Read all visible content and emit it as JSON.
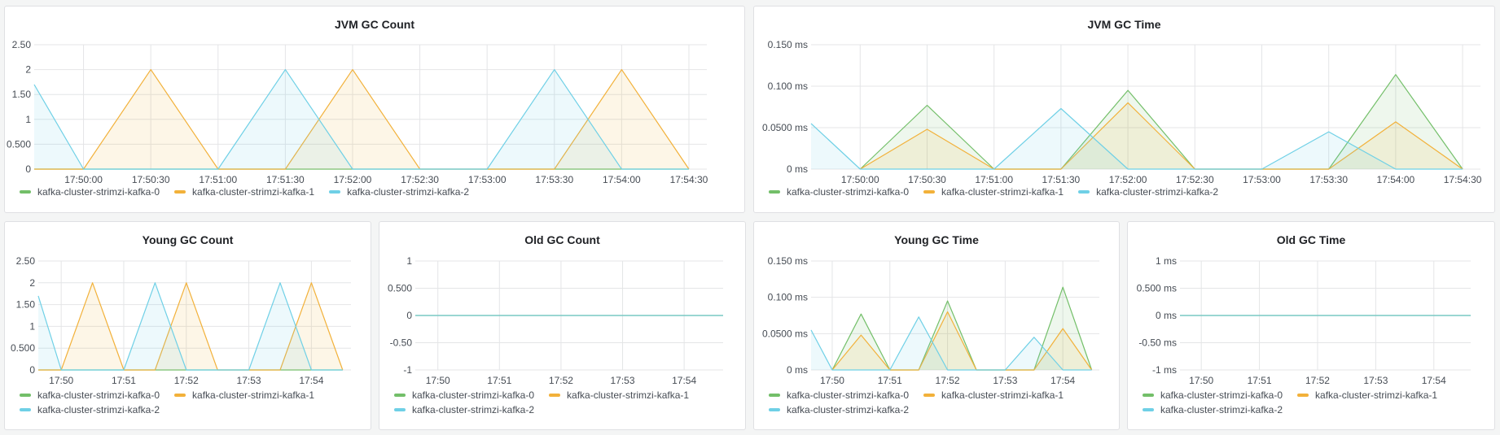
{
  "colors": {
    "series": [
      "#73bf69",
      "#f2b13a",
      "#6fd0e6"
    ],
    "grid": "#e4e5e7",
    "text": "#464c54"
  },
  "legend": [
    "kafka-cluster-strimzi-kafka-0",
    "kafka-cluster-strimzi-kafka-1",
    "kafka-cluster-strimzi-kafka-2"
  ],
  "chart_data": [
    {
      "id": "jvm-gc-count",
      "type": "area",
      "title": "JVM GC Count",
      "ylim": [
        0,
        2.5
      ],
      "yticks": [
        0,
        0.5,
        1,
        1.5,
        2,
        2.5
      ],
      "ytick_labels": [
        "0",
        "0.500",
        "1",
        "1.50",
        "2",
        "2.50"
      ],
      "xlim": [
        "17:49:38",
        "17:54:38"
      ],
      "xticks": [
        "17:50:00",
        "17:50:30",
        "17:51:00",
        "17:51:30",
        "17:52:00",
        "17:52:30",
        "17:53:00",
        "17:53:30",
        "17:54:00",
        "17:54:30"
      ],
      "xtick_labels": [
        "17:50:00",
        "17:50:30",
        "17:51:00",
        "17:51:30",
        "17:52:00",
        "17:52:30",
        "17:53:00",
        "17:53:30",
        "17:54:00",
        "17:54:30"
      ],
      "grid": true,
      "legend_position": "bottom",
      "series": [
        {
          "name": "kafka-cluster-strimzi-kafka-0",
          "x": [
            "17:49:38",
            "17:50:00",
            "17:51:30",
            "17:52:00",
            "17:52:30",
            "17:53:30",
            "17:54:00",
            "17:54:30"
          ],
          "y": [
            0,
            0,
            0,
            0,
            0,
            0,
            0,
            0
          ]
        },
        {
          "name": "kafka-cluster-strimzi-kafka-1",
          "x": [
            "17:49:38",
            "17:50:00",
            "17:50:30",
            "17:51:00",
            "17:51:30",
            "17:52:00",
            "17:52:30",
            "17:53:30",
            "17:54:00",
            "17:54:30"
          ],
          "y": [
            0,
            0,
            2,
            0,
            0,
            2,
            0,
            0,
            2,
            0
          ]
        },
        {
          "name": "kafka-cluster-strimzi-kafka-2",
          "x": [
            "17:49:38",
            "17:50:00",
            "17:51:00",
            "17:51:30",
            "17:52:00",
            "17:53:00",
            "17:53:30",
            "17:54:00",
            "17:54:30"
          ],
          "y": [
            1.7,
            0,
            0,
            2,
            0,
            0,
            2,
            0,
            0
          ]
        }
      ]
    },
    {
      "id": "jvm-gc-time",
      "type": "area",
      "title": "JVM GC Time",
      "ylim": [
        0,
        0.15
      ],
      "yticks": [
        0,
        0.05,
        0.1,
        0.15
      ],
      "ytick_labels": [
        "0 ms",
        "0.0500 ms",
        "0.100 ms",
        "0.150 ms"
      ],
      "xlim": [
        "17:49:38",
        "17:54:38"
      ],
      "xticks": [
        "17:50:00",
        "17:50:30",
        "17:51:00",
        "17:51:30",
        "17:52:00",
        "17:52:30",
        "17:53:00",
        "17:53:30",
        "17:54:00",
        "17:54:30"
      ],
      "xtick_labels": [
        "17:50:00",
        "17:50:30",
        "17:51:00",
        "17:51:30",
        "17:52:00",
        "17:52:30",
        "17:53:00",
        "17:53:30",
        "17:54:00",
        "17:54:30"
      ],
      "grid": true,
      "legend_position": "bottom",
      "series": [
        {
          "name": "kafka-cluster-strimzi-kafka-0",
          "x": [
            "17:50:00",
            "17:50:30",
            "17:51:00",
            "17:51:30",
            "17:52:00",
            "17:52:30",
            "17:53:30",
            "17:54:00",
            "17:54:30"
          ],
          "y": [
            0,
            0.077,
            0,
            0,
            0.095,
            0,
            0,
            0.114,
            0
          ]
        },
        {
          "name": "kafka-cluster-strimzi-kafka-1",
          "x": [
            "17:50:00",
            "17:50:30",
            "17:51:00",
            "17:51:30",
            "17:52:00",
            "17:52:30",
            "17:53:30",
            "17:54:00",
            "17:54:30"
          ],
          "y": [
            0,
            0.048,
            0,
            0,
            0.08,
            0,
            0,
            0.057,
            0
          ]
        },
        {
          "name": "kafka-cluster-strimzi-kafka-2",
          "x": [
            "17:49:38",
            "17:50:00",
            "17:51:00",
            "17:51:30",
            "17:52:00",
            "17:53:00",
            "17:53:30",
            "17:54:00",
            "17:54:30"
          ],
          "y": [
            0.055,
            0,
            0,
            0.073,
            0,
            0,
            0.045,
            0,
            0
          ]
        }
      ]
    },
    {
      "id": "young-gc-count",
      "type": "area",
      "title": "Young GC Count",
      "ylim": [
        0,
        2.5
      ],
      "yticks": [
        0,
        0.5,
        1,
        1.5,
        2,
        2.5
      ],
      "ytick_labels": [
        "0",
        "0.500",
        "1",
        "1.50",
        "2",
        "2.50"
      ],
      "xlim": [
        "17:49:38",
        "17:54:38"
      ],
      "xticks": [
        "17:50:00",
        "17:51:00",
        "17:52:00",
        "17:53:00",
        "17:54:00"
      ],
      "xtick_labels": [
        "17:50",
        "17:51",
        "17:52",
        "17:53",
        "17:54"
      ],
      "grid": true,
      "legend_position": "bottom",
      "series": [
        {
          "name": "kafka-cluster-strimzi-kafka-0",
          "x": [
            "17:49:38",
            "17:54:30"
          ],
          "y": [
            0,
            0
          ]
        },
        {
          "name": "kafka-cluster-strimzi-kafka-1",
          "x": [
            "17:49:38",
            "17:50:00",
            "17:50:30",
            "17:51:00",
            "17:51:30",
            "17:52:00",
            "17:52:30",
            "17:53:30",
            "17:54:00",
            "17:54:30"
          ],
          "y": [
            0,
            0,
            2,
            0,
            0,
            2,
            0,
            0,
            2,
            0
          ]
        },
        {
          "name": "kafka-cluster-strimzi-kafka-2",
          "x": [
            "17:49:38",
            "17:50:00",
            "17:51:00",
            "17:51:30",
            "17:52:00",
            "17:53:00",
            "17:53:30",
            "17:54:00",
            "17:54:30"
          ],
          "y": [
            1.7,
            0,
            0,
            2,
            0,
            0,
            2,
            0,
            0
          ]
        }
      ]
    },
    {
      "id": "old-gc-count",
      "type": "line",
      "title": "Old GC Count",
      "ylim": [
        -1,
        1
      ],
      "yticks": [
        -1,
        -0.5,
        0,
        0.5,
        1
      ],
      "ytick_labels": [
        "-1",
        "-0.50",
        "0",
        "0.500",
        "1"
      ],
      "xlim": [
        "17:49:38",
        "17:54:38"
      ],
      "xticks": [
        "17:50:00",
        "17:51:00",
        "17:52:00",
        "17:53:00",
        "17:54:00"
      ],
      "xtick_labels": [
        "17:50",
        "17:51",
        "17:52",
        "17:53",
        "17:54"
      ],
      "grid": true,
      "legend_position": "bottom",
      "series": [
        {
          "name": "kafka-cluster-strimzi-kafka-0",
          "x": [
            "17:49:38",
            "17:54:38"
          ],
          "y": [
            0,
            0
          ]
        },
        {
          "name": "kafka-cluster-strimzi-kafka-1",
          "x": [
            "17:49:38",
            "17:54:38"
          ],
          "y": [
            0,
            0
          ]
        },
        {
          "name": "kafka-cluster-strimzi-kafka-2",
          "x": [
            "17:49:38",
            "17:54:38"
          ],
          "y": [
            0,
            0
          ]
        }
      ]
    },
    {
      "id": "young-gc-time",
      "type": "area",
      "title": "Young GC Time",
      "ylim": [
        0,
        0.15
      ],
      "yticks": [
        0,
        0.05,
        0.1,
        0.15
      ],
      "ytick_labels": [
        "0 ms",
        "0.0500 ms",
        "0.100 ms",
        "0.150 ms"
      ],
      "xlim": [
        "17:49:38",
        "17:54:38"
      ],
      "xticks": [
        "17:50:00",
        "17:51:00",
        "17:52:00",
        "17:53:00",
        "17:54:00"
      ],
      "xtick_labels": [
        "17:50",
        "17:51",
        "17:52",
        "17:53",
        "17:54"
      ],
      "grid": true,
      "legend_position": "bottom",
      "series": [
        {
          "name": "kafka-cluster-strimzi-kafka-0",
          "x": [
            "17:50:00",
            "17:50:30",
            "17:51:00",
            "17:51:30",
            "17:52:00",
            "17:52:30",
            "17:53:30",
            "17:54:00",
            "17:54:30"
          ],
          "y": [
            0,
            0.077,
            0,
            0,
            0.095,
            0,
            0,
            0.114,
            0
          ]
        },
        {
          "name": "kafka-cluster-strimzi-kafka-1",
          "x": [
            "17:50:00",
            "17:50:30",
            "17:51:00",
            "17:51:30",
            "17:52:00",
            "17:52:30",
            "17:53:30",
            "17:54:00",
            "17:54:30"
          ],
          "y": [
            0,
            0.048,
            0,
            0,
            0.08,
            0,
            0,
            0.057,
            0
          ]
        },
        {
          "name": "kafka-cluster-strimzi-kafka-2",
          "x": [
            "17:49:38",
            "17:50:00",
            "17:51:00",
            "17:51:30",
            "17:52:00",
            "17:53:00",
            "17:53:30",
            "17:54:00",
            "17:54:30"
          ],
          "y": [
            0.055,
            0,
            0,
            0.073,
            0,
            0,
            0.045,
            0,
            0
          ]
        }
      ]
    },
    {
      "id": "old-gc-time",
      "type": "line",
      "title": "Old GC Time",
      "ylim": [
        -1,
        1
      ],
      "yticks": [
        -1,
        -0.5,
        0,
        0.5,
        1
      ],
      "ytick_labels": [
        "-1 ms",
        "-0.50 ms",
        "0 ms",
        "0.500 ms",
        "1 ms"
      ],
      "xlim": [
        "17:49:38",
        "17:54:38"
      ],
      "xticks": [
        "17:50:00",
        "17:51:00",
        "17:52:00",
        "17:53:00",
        "17:54:00"
      ],
      "xtick_labels": [
        "17:50",
        "17:51",
        "17:52",
        "17:53",
        "17:54"
      ],
      "grid": true,
      "legend_position": "bottom",
      "series": [
        {
          "name": "kafka-cluster-strimzi-kafka-0",
          "x": [
            "17:49:38",
            "17:54:38"
          ],
          "y": [
            0,
            0
          ]
        },
        {
          "name": "kafka-cluster-strimzi-kafka-1",
          "x": [
            "17:49:38",
            "17:54:38"
          ],
          "y": [
            0,
            0
          ]
        },
        {
          "name": "kafka-cluster-strimzi-kafka-2",
          "x": [
            "17:49:38",
            "17:54:38"
          ],
          "y": [
            0,
            0
          ]
        }
      ]
    }
  ]
}
